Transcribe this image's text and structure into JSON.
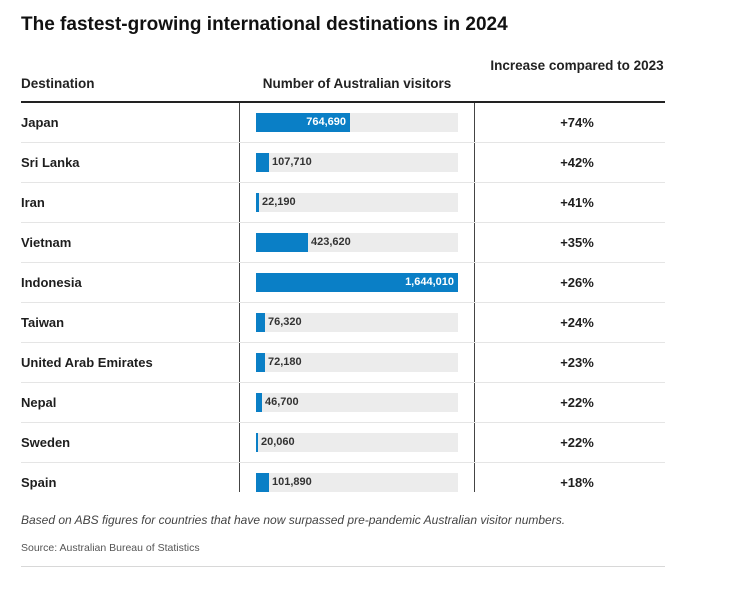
{
  "title": "The fastest-growing international destinations in 2024",
  "columns": {
    "destination": "Destination",
    "visitors": "Number of Australian visitors",
    "increase": "Increase compared to 2023"
  },
  "chart_data": {
    "type": "table",
    "max_value": 1644010,
    "rows": [
      {
        "destination": "Japan",
        "visitors": 764690,
        "visitors_label": "764,690",
        "increase": "+74%"
      },
      {
        "destination": "Sri Lanka",
        "visitors": 107710,
        "visitors_label": "107,710",
        "increase": "+42%"
      },
      {
        "destination": "Iran",
        "visitors": 22190,
        "visitors_label": "22,190",
        "increase": "+41%"
      },
      {
        "destination": "Vietnam",
        "visitors": 423620,
        "visitors_label": "423,620",
        "increase": "+35%"
      },
      {
        "destination": "Indonesia",
        "visitors": 1644010,
        "visitors_label": "1,644,010",
        "increase": "+26%"
      },
      {
        "destination": "Taiwan",
        "visitors": 76320,
        "visitors_label": "76,320",
        "increase": "+24%"
      },
      {
        "destination": "United Arab Emirates",
        "visitors": 72180,
        "visitors_label": "72,180",
        "increase": "+23%"
      },
      {
        "destination": "Nepal",
        "visitors": 46700,
        "visitors_label": "46,700",
        "increase": "+22%"
      },
      {
        "destination": "Sweden",
        "visitors": 20060,
        "visitors_label": "20,060",
        "increase": "+22%"
      },
      {
        "destination": "Spain",
        "visitors": 101890,
        "visitors_label": "101,890",
        "increase": "+18%"
      }
    ]
  },
  "footnote": "Based on ABS figures for countries that have now surpassed pre-pandemic Australian visitor numbers.",
  "source": "Source: Australian Bureau of Statistics",
  "colors": {
    "bar": "#0a7fc6",
    "track": "#ececec",
    "rule": "#222222"
  }
}
